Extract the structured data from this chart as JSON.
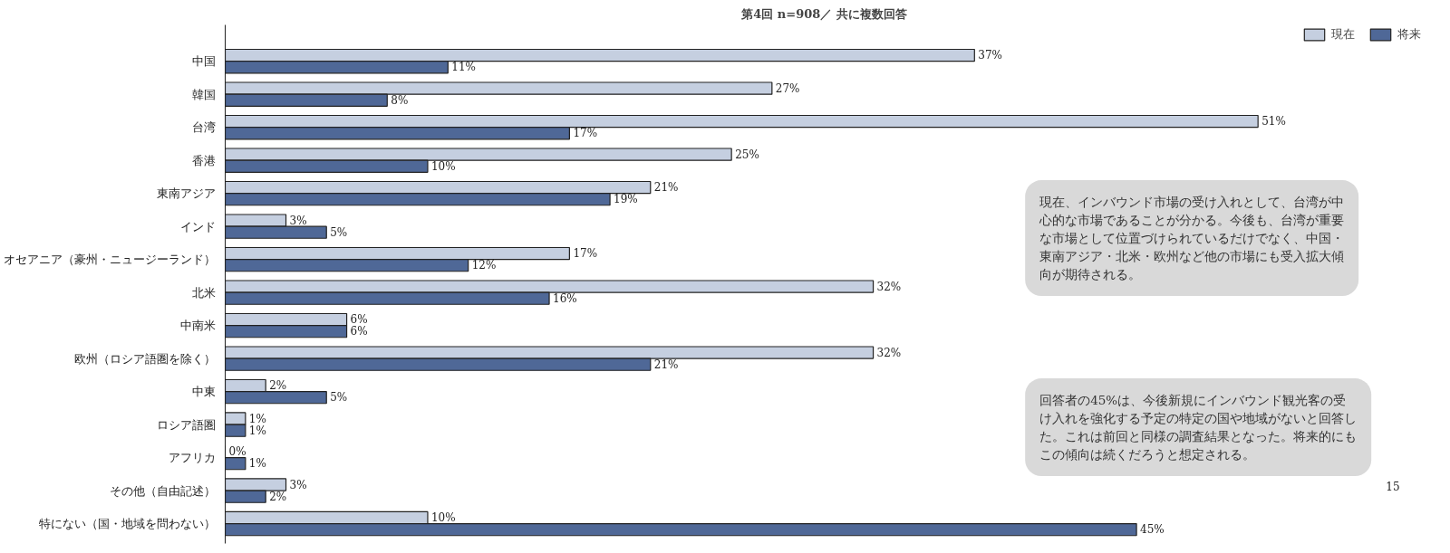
{
  "chart_data": {
    "type": "bar",
    "orientation": "horizontal",
    "title": "第4回 n=908／ 共に複数回答",
    "categories": [
      "中国",
      "韓国",
      "台湾",
      "香港",
      "東南アジア",
      "インド",
      "オセアニア（豪州・ニュージーランド）",
      "北米",
      "中南米",
      "欧州（ロシア語圏を除く）",
      "中東",
      "ロシア語圏",
      "アフリカ",
      "その他（自由記述）",
      "特にない（国・地域を問わない）"
    ],
    "series": [
      {
        "name": "現在",
        "color": "#c5cfe0",
        "values": [
          37,
          27,
          51,
          25,
          21,
          3,
          17,
          32,
          6,
          32,
          2,
          1,
          0,
          3,
          10
        ],
        "value_labels": [
          "37%",
          "27%",
          "51%",
          "25%",
          "21%",
          "3%",
          "17%",
          "32%",
          "6%",
          "32%",
          "2%",
          "1%",
          "0%",
          "3%",
          "10%"
        ]
      },
      {
        "name": "将来",
        "color": "#4f6897",
        "values": [
          11,
          8,
          17,
          10,
          19,
          5,
          12,
          16,
          6,
          21,
          5,
          1,
          1,
          2,
          45
        ],
        "value_labels": [
          "11%",
          "8%",
          "17%",
          "10%",
          "19%",
          "5%",
          "12%",
          "16%",
          "6%",
          "21%",
          "5%",
          "1%",
          "1%",
          "2%",
          "45%"
        ]
      }
    ],
    "tick_labels": "y",
    "grid": false,
    "legend": "top right",
    "annotations": [
      "現在、インバウンド市場の受け入れとして、台湾が中心的な市場であることが分かる。今後も、台湾が重要な市場として位置づけられているだけでなく、中国・東南アジア・北米・欧州など他の市場にも受入拡大傾向が期待される。",
      "回答者の45%は、今後新規にインバウンド観光客の受け入れを強化する予定の特定の国や地域がないと回答した。これは前回と同様の調査結果となった。将来的にもこの傾向は続くだろうと想定される。",
      "15"
    ]
  }
}
